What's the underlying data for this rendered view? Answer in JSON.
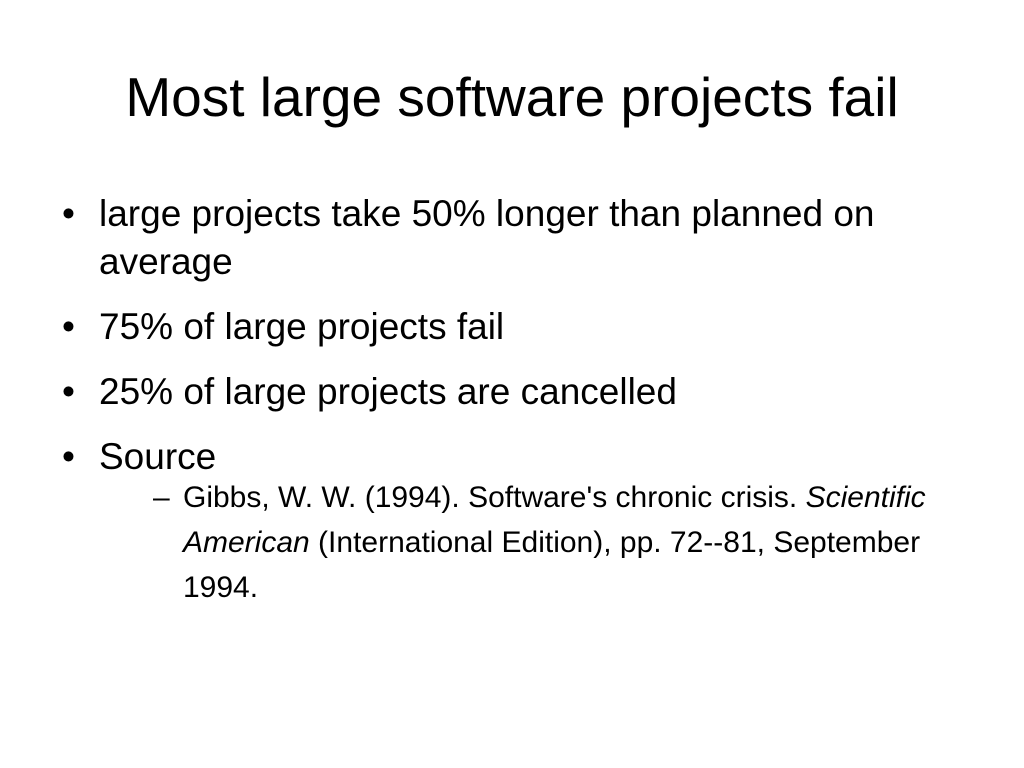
{
  "slide": {
    "title": "Most large software projects fail",
    "bullets": [
      {
        "marker": "•",
        "text": "large projects take 50% longer than planned on average"
      },
      {
        "marker": "•",
        "text": "75% of large projects fail"
      },
      {
        "marker": "•",
        "text": "25% of large projects are cancelled"
      },
      {
        "marker": "•",
        "text": "Source"
      }
    ],
    "source": {
      "marker": "–",
      "citation_start": "Gibbs, W. W. (1994). Software's chronic crisis. ",
      "journal": "Scientific American",
      "citation_end": " (International Edition), pp. 72--81, September 1994."
    }
  }
}
